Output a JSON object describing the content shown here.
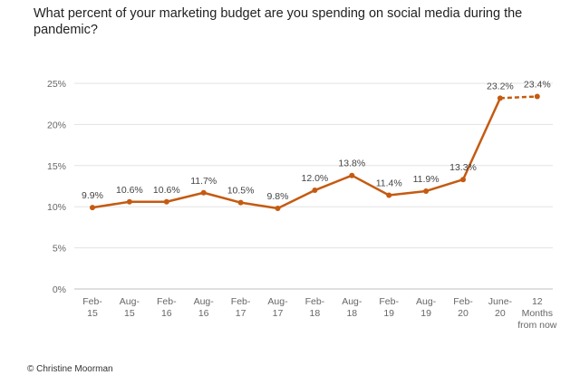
{
  "chart_data": {
    "type": "line",
    "title": "What percent of your marketing budget are you spending on social media during the pandemic?",
    "categories": [
      [
        "Feb-",
        "15"
      ],
      [
        "Aug-",
        "15"
      ],
      [
        "Feb-",
        "16"
      ],
      [
        "Aug-",
        "16"
      ],
      [
        "Feb-",
        "17"
      ],
      [
        "Aug-",
        "17"
      ],
      [
        "Feb-",
        "18"
      ],
      [
        "Aug-",
        "18"
      ],
      [
        "Feb-",
        "19"
      ],
      [
        "Aug-",
        "19"
      ],
      [
        "Feb-",
        "20"
      ],
      [
        "June-",
        "20"
      ],
      [
        "12",
        "Months",
        "from now"
      ]
    ],
    "values": [
      9.9,
      10.6,
      10.6,
      11.7,
      10.5,
      9.8,
      12.0,
      13.8,
      11.4,
      11.9,
      13.3,
      23.2,
      23.4
    ],
    "data_labels": [
      "9.9%",
      "10.6%",
      "10.6%",
      "11.7%",
      "10.5%",
      "9.8%",
      "12.0%",
      "13.8%",
      "11.4%",
      "11.9%",
      "13.3%",
      "23.2%",
      "23.4%"
    ],
    "dashed_last_segment": true,
    "yticks": [
      "0%",
      "5%",
      "10%",
      "15%",
      "20%",
      "25%"
    ],
    "ylim": [
      0,
      25
    ],
    "grid": true,
    "color": "#C55A11"
  },
  "credit": "© Christine Moorman"
}
